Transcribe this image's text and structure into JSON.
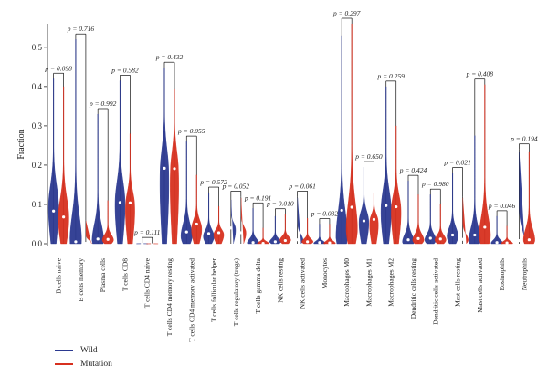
{
  "chart_data": {
    "type": "violin",
    "title": "",
    "xlabel": "",
    "ylabel": "Fraction",
    "ylim": [
      0,
      0.56
    ],
    "yticks": [
      0.0,
      0.1,
      0.2,
      0.3,
      0.4,
      0.5
    ],
    "ytick_labels": [
      "0.0",
      "0.1",
      "0.2",
      "0.3",
      "0.4",
      "0.5"
    ],
    "colors": {
      "Wild": "#2b3990",
      "Mutation": "#d7301f"
    },
    "categories": [
      "B cells naive",
      "B cells memory",
      "Plasma cells",
      "T cells CD8",
      "T cells CD4 naive",
      "T cells CD4 memory resting",
      "T cells CD4 memory activated",
      "T cells follicular helper",
      "T cells regulatory (tregs)",
      "T cells gamma delta",
      "NK cells resting",
      "NK cells activated",
      "Monocytes",
      "Macrophages M0",
      "Macrophages M1",
      "Macrophages M2",
      "Dendritic cells resting",
      "Dendritic cells activated",
      "Mast cells resting",
      "Mast cells activated",
      "Eosinophils",
      "Neutrophils"
    ],
    "p_labels": [
      "p = 0.098",
      "p = 0.716",
      "p = 0.992",
      "p = 0.582",
      "p = 0.111",
      "p = 0.432",
      "p = 0.055",
      "p = 0.572",
      "p = 0.052",
      "p = 0.191",
      "p = 0.010",
      "p = 0.061",
      "p = 0.032",
      "p = 0.297",
      "p = 0.650",
      "p = 0.259",
      "p = 0.424",
      "p = 0.980",
      "p = 0.021",
      "p = 0.408",
      "p = 0.046",
      "p = 0.194"
    ],
    "series": [
      {
        "name": "Wild",
        "max": [
          0.42,
          0.52,
          0.33,
          0.415,
          0.002,
          0.448,
          0.26,
          0.13,
          0.115,
          0.09,
          0.07,
          0.12,
          0.05,
          0.53,
          0.195,
          0.4,
          0.16,
          0.125,
          0.18,
          0.275,
          0.07,
          0.24
        ],
        "median": [
          0.083,
          0.005,
          0.012,
          0.105,
          0.0,
          0.192,
          0.03,
          0.026,
          0.04,
          0.003,
          0.005,
          0.01,
          0.003,
          0.085,
          0.058,
          0.097,
          0.01,
          0.014,
          0.022,
          0.022,
          0.003,
          0.008
        ],
        "peak": [
          0.1,
          0.01,
          0.01,
          0.11,
          0.0,
          0.19,
          0.02,
          0.02,
          0.04,
          0.0,
          0.005,
          0.01,
          0.0,
          0.02,
          0.06,
          0.09,
          0.005,
          0.01,
          0.02,
          0.01,
          0.0,
          0.005
        ]
      },
      {
        "name": "Mutation",
        "max": [
          0.4,
          0.06,
          0.11,
          0.28,
          0.001,
          0.395,
          0.175,
          0.095,
          0.12,
          0.04,
          0.075,
          0.065,
          0.05,
          0.56,
          0.13,
          0.3,
          0.125,
          0.1,
          0.12,
          0.405,
          0.045,
          0.235
        ],
        "median": [
          0.068,
          0.001,
          0.011,
          0.104,
          0.0,
          0.191,
          0.05,
          0.028,
          0.028,
          0.001,
          0.008,
          0.005,
          0.002,
          0.093,
          0.062,
          0.094,
          0.013,
          0.012,
          0.011,
          0.042,
          0.002,
          0.01
        ],
        "peak": [
          0.07,
          0.0,
          0.01,
          0.1,
          0.0,
          0.19,
          0.04,
          0.025,
          0.03,
          0.0,
          0.01,
          0.005,
          0.0,
          0.04,
          0.06,
          0.09,
          0.01,
          0.01,
          0.01,
          0.02,
          0.0,
          0.01
        ]
      }
    ],
    "legend": {
      "position": "bottom-left",
      "entries": [
        "Wild",
        "Mutation"
      ]
    },
    "grid": false
  }
}
